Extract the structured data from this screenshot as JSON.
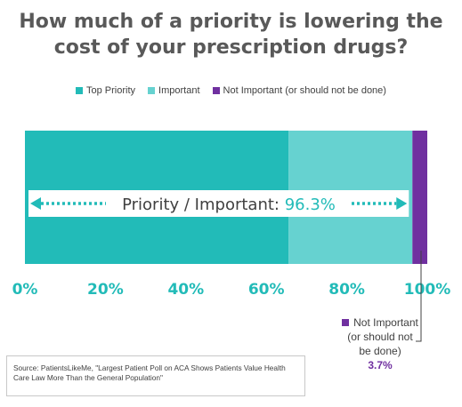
{
  "title": "How much of a priority is lowering the cost of your prescription drugs?",
  "legend": [
    {
      "label": "Top Priority",
      "color": "#22bbb8"
    },
    {
      "label": "Important",
      "color": "#66d2d0"
    },
    {
      "label": "Not Important (or should not be done)",
      "color": "#7030a0"
    }
  ],
  "chart_data": {
    "type": "bar",
    "orientation": "horizontal",
    "stacked": true,
    "series": [
      {
        "name": "Top Priority",
        "values": [
          65.5
        ],
        "color": "#22bbb8"
      },
      {
        "name": "Important",
        "values": [
          30.8
        ],
        "color": "#66d2d0"
      },
      {
        "name": "Not Important (or should not be done)",
        "values": [
          3.7
        ],
        "color": "#7030a0"
      }
    ],
    "xlim": [
      0,
      100
    ],
    "x_ticks": [
      "0%",
      "20%",
      "40%",
      "60%",
      "80%",
      "100%"
    ],
    "grid": false,
    "legend_position": "top"
  },
  "overlay": {
    "label": "Priority / Important:",
    "value": "96.3%",
    "arrow_color": "#22bbb8"
  },
  "annotation": {
    "lines": [
      "Not Important",
      "(or should not",
      "be done)"
    ],
    "value": "3.7%",
    "color": "#7030a0"
  },
  "source": "Source: PatientsLikeMe, \"Largest Patient Poll on ACA Shows Patients Value Health Care Law More Than the General Population\""
}
